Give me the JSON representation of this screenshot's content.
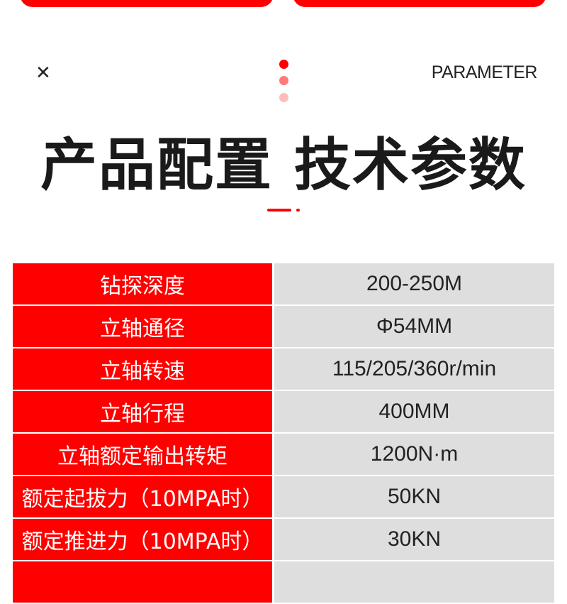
{
  "header": {
    "close_icon": "close-icon",
    "subtitle": "PARAMETER",
    "title": "产品配置 技术参数",
    "accent": "#ff0000"
  },
  "params": [
    {
      "label": "钻探深度",
      "value": "200-250M"
    },
    {
      "label": "立轴通径",
      "value": "Φ54MM"
    },
    {
      "label": "立轴转速",
      "value": "115/205/360r/min"
    },
    {
      "label": "立轴行程",
      "value": "400MM"
    },
    {
      "label": "立轴额定输出转矩",
      "value": "1200N·m"
    },
    {
      "label": "额定起拔力（10MPA时）",
      "value": "50KN"
    },
    {
      "label": "额定推进力（10MPA时）",
      "value": "30KN"
    },
    {
      "label": "",
      "value": ""
    }
  ]
}
